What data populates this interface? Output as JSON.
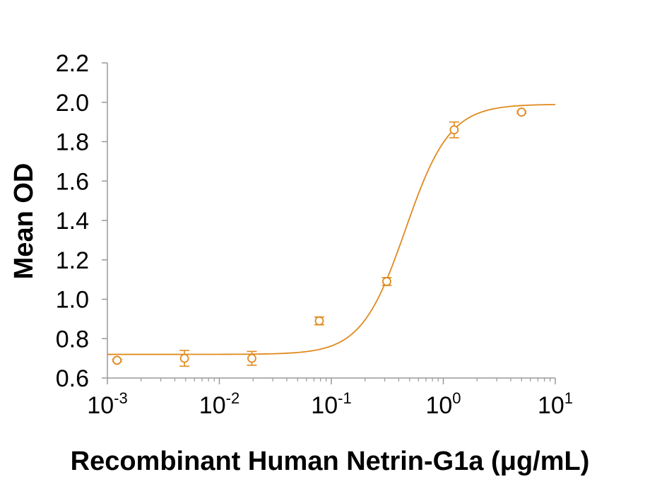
{
  "chart_data": {
    "type": "scatter",
    "xlabel": "Recombinant Human Netrin-G1a (μg/mL)",
    "ylabel": "Mean OD",
    "xscale": "log",
    "xlim": [
      0.001,
      10
    ],
    "ylim": [
      0.6,
      2.2
    ],
    "yticks": [
      {
        "value": 0.6,
        "label": "0.6"
      },
      {
        "value": 0.8,
        "label": "0.8"
      },
      {
        "value": 1.0,
        "label": "1.0"
      },
      {
        "value": 1.2,
        "label": "1.2"
      },
      {
        "value": 1.4,
        "label": "1.4"
      },
      {
        "value": 1.6,
        "label": "1.6"
      },
      {
        "value": 1.8,
        "label": "1.8"
      },
      {
        "value": 2.0,
        "label": "2.0"
      },
      {
        "value": 2.2,
        "label": "2.2"
      }
    ],
    "xticks": [
      {
        "value": 0.001,
        "base": "10",
        "exp": "-3"
      },
      {
        "value": 0.01,
        "base": "10",
        "exp": "-2"
      },
      {
        "value": 0.1,
        "base": "10",
        "exp": "-1"
      },
      {
        "value": 1,
        "base": "10",
        "exp": "0"
      },
      {
        "value": 10,
        "base": "10",
        "exp": "1"
      }
    ],
    "grid": false,
    "legend": "none",
    "color": "#E08A1E",
    "series": [
      {
        "marker": "open-circle",
        "points": [
          {
            "x": 0.00122,
            "y": 0.69,
            "err": 0.005
          },
          {
            "x": 0.00488,
            "y": 0.7,
            "err": 0.04
          },
          {
            "x": 0.0195,
            "y": 0.7,
            "err": 0.035
          },
          {
            "x": 0.0781,
            "y": 0.89,
            "err": 0.02
          },
          {
            "x": 0.3125,
            "y": 1.09,
            "err": 0.02
          },
          {
            "x": 1.25,
            "y": 1.86,
            "err": 0.04
          },
          {
            "x": 5.0,
            "y": 1.95,
            "err": 0.005
          }
        ]
      }
    ],
    "fit_curve": {
      "model": "4PL",
      "bottom": 0.72,
      "top": 1.99,
      "ec50": 0.46,
      "hill": 2.2
    }
  }
}
